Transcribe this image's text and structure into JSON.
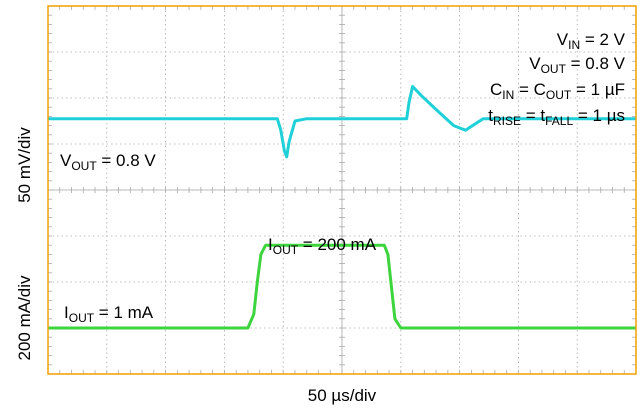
{
  "chart_data": {
    "type": "line",
    "title": "",
    "xlabel": "50 µs/div",
    "ylabels": {
      "top": "50 mV/div",
      "bottom": "200 mA/div"
    },
    "grid": {
      "x_divisions": 10,
      "y_divisions": 8,
      "style": "dashed"
    },
    "annotations": {
      "conditions": [
        {
          "main": "V",
          "sub": "IN",
          "rest": " = 2 V"
        },
        {
          "main": "V",
          "sub": "OUT",
          "rest": " = 0.8 V"
        },
        {
          "main": "C",
          "sub": "IN",
          "mid": " = C",
          "sub2": "OUT",
          "rest": " = 1 µF"
        },
        {
          "main": "t",
          "sub": "RISE",
          "mid": " = t",
          "sub2": "FALL",
          "rest": " = 1 µs"
        }
      ],
      "vout_label": {
        "main": "V",
        "sub": "OUT",
        "rest": " = 0.8 V"
      },
      "iout_high": {
        "main": "I",
        "sub": "OUT",
        "rest": " = 200 mA"
      },
      "iout_low": {
        "main": "I",
        "sub": "OUT",
        "rest": " = 1 mA"
      }
    },
    "x_range_div": [
      0,
      10
    ],
    "series": [
      {
        "color": "#1fd0d8",
        "x": [
          0,
          3.9,
          3.96,
          4.02,
          4.06,
          4.1,
          4.2,
          4.4,
          6.1,
          6.14,
          6.2,
          6.35,
          6.6,
          6.9,
          7.1,
          7.4,
          7.7,
          10
        ],
        "y": [
          5.55,
          5.55,
          5.3,
          4.85,
          4.72,
          5.05,
          5.5,
          5.55,
          5.55,
          5.9,
          6.25,
          6.05,
          5.75,
          5.4,
          5.3,
          5.55,
          5.55,
          5.55
        ]
      },
      {
        "color": "#3ed43e",
        "x": [
          0,
          3.4,
          3.5,
          3.56,
          3.62,
          3.7,
          5.72,
          5.78,
          5.84,
          5.9,
          6.0,
          10
        ],
        "y": [
          1.0,
          1.0,
          1.3,
          2.0,
          2.6,
          2.8,
          2.8,
          2.6,
          1.9,
          1.2,
          1.0,
          1.0
        ]
      }
    ]
  },
  "colors": {
    "frame": "#f0a000",
    "grid": "#aaaaaa",
    "ch1": "#1fd0d8",
    "ch2": "#3ed43e"
  }
}
